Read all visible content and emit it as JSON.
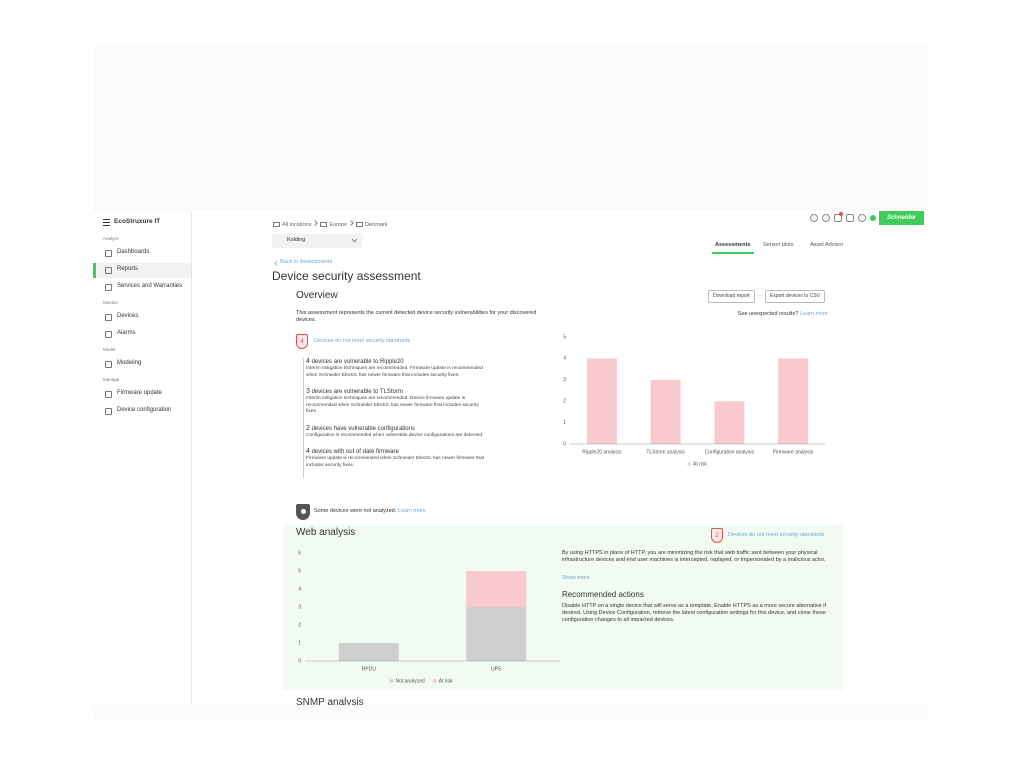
{
  "sidebar": {
    "brand": "EcoStruxure IT",
    "active": "Reports",
    "sections": [
      {
        "title": "Analyze",
        "items": [
          "Dashboards",
          "Reports",
          "Services and Warranties"
        ]
      },
      {
        "title": "Monitor",
        "items": [
          "Devices",
          "Alarms"
        ]
      },
      {
        "title": "Model",
        "items": [
          "Modeling"
        ]
      },
      {
        "title": "Manage",
        "items": [
          "Firmware update",
          "Device configuration"
        ]
      }
    ]
  },
  "header": {
    "breadcrumbs": [
      "All locations",
      "Europe",
      "Denmark"
    ],
    "location": "Kolding",
    "tabs": [
      "Assessments",
      "Sensor plots",
      "Asset Advisor"
    ],
    "active_tab": "Assessments",
    "brand": "Schneider"
  },
  "back_link": "Back to Assessments",
  "title": "Device security assessment",
  "overview": {
    "heading": "Overview",
    "buttons": [
      "Download report",
      "Export devices to CSV"
    ],
    "description": "This assessment represents the current detected device security vulnerabilities for your discovered devices.",
    "unexpected": "See unexpected results?",
    "learn_more": "Learn more",
    "badge_count": 4,
    "badge_text": "Devices do not meet security standards",
    "findings": [
      {
        "count": 4,
        "title": "devices are vulnerable to Ripple20",
        "text": "Interim mitigation techniques are recommended. Firmware update is recommended when Schneider Electric has newer firmware that includes security fixes."
      },
      {
        "count": 3,
        "title": "devices are vulnerable to TLStorm",
        "text": "Interim mitigation techniques are recommended. Device firmware update is recommended when Schneider Electric has newer firmware that includes security fixes."
      },
      {
        "count": 2,
        "title": "devices have vulnerable configurations",
        "text": "Configuration is recommended when vulnerable device configurations are detected."
      },
      {
        "count": 4,
        "title": "devices with out of date firmware",
        "text": "Firmware update is recommended when Schneider Electric has newer firmware that includes security fixes."
      }
    ],
    "not_analyzed": "Some devices were not analyzed.",
    "not_analyzed_link": "Learn more"
  },
  "web_analysis": {
    "heading": "Web analysis",
    "badge_count": 2,
    "badge_text": "Devices do not meet security standards",
    "description": "By using HTTPS in place of HTTP, you are minimizing the risk that web traffic sent between your physical infrastructure devices and end user machines is intercepted, replayed, or impersonated by a malicious actor.",
    "show_more": "Show more",
    "actions_heading": "Recommended actions",
    "actions": "Disable HTTP on a single device that will serve as a template. Enable HTTPS as a more secure alternative if desired. Using Device Configuration, retrieve the latest configuration settings for this device, and clone these configuration changes to all impacted devices."
  },
  "next_section": "SNMP analysis",
  "chart_data": [
    {
      "type": "bar",
      "categories": [
        "Ripple20 analysis",
        "TLStorm analysis",
        "Configuration analysis",
        "Firmware analysis"
      ],
      "series": [
        {
          "name": "At risk",
          "color": "#f8c9cd",
          "values": [
            4,
            3,
            2,
            4
          ]
        }
      ],
      "ylim": [
        0,
        5
      ],
      "yticks": [
        0,
        1,
        2,
        3,
        4,
        5
      ],
      "grid": false
    },
    {
      "type": "stacked_bar",
      "categories": [
        "RPDU",
        "UPS"
      ],
      "series": [
        {
          "name": "Not analyzed",
          "color": "#cfcfcf",
          "values": [
            1,
            3
          ]
        },
        {
          "name": "At risk",
          "color": "#f8c9cd",
          "values": [
            0,
            2
          ]
        }
      ],
      "ylim": [
        0,
        6
      ],
      "yticks": [
        0,
        1,
        2,
        3,
        4,
        5,
        6
      ],
      "grid": false
    }
  ]
}
